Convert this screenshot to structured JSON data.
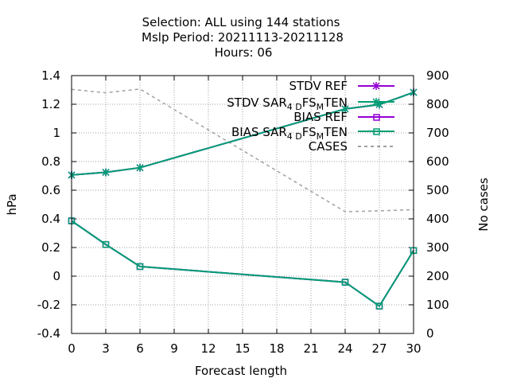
{
  "chart_data": {
    "type": "line",
    "title_lines": [
      "Selection: ALL using   144 stations",
      "Mslp   Period: 20211113-20211128",
      "Hours:  06"
    ],
    "xlabel": "Forecast length",
    "ylabel": "hPa",
    "y2label": "No cases",
    "xlim": [
      0,
      30
    ],
    "ylim": [
      -0.4,
      1.4
    ],
    "y2lim": [
      0,
      900
    ],
    "xticks": [
      0,
      3,
      6,
      9,
      12,
      15,
      18,
      21,
      24,
      27,
      30
    ],
    "yticks": [
      -0.4,
      -0.2,
      0,
      0.2,
      0.4,
      0.6,
      0.8,
      1,
      1.2,
      1.4
    ],
    "y2ticks": [
      0,
      100,
      200,
      300,
      400,
      500,
      600,
      700,
      800,
      900
    ],
    "grid": true,
    "legend_position": "top-right",
    "x": [
      0,
      3,
      6,
      24,
      27,
      30
    ],
    "series": [
      {
        "name": "STDV REF",
        "legend_text": "STDV REF",
        "axis": "y1",
        "color": "#9400d3",
        "marker": "star",
        "values": [
          0.706,
          0.725,
          0.757,
          1.167,
          1.198,
          1.283
        ]
      },
      {
        "name": "STDV SAR4DFSMTEN",
        "legend_text": "STDV SAR",
        "legend_sub1": "4 D",
        "legend_mid": "FS",
        "legend_sub2": "M",
        "legend_end": "TEN",
        "axis": "y1",
        "color": "#009e73",
        "marker": "star",
        "values": [
          0.706,
          0.725,
          0.757,
          1.167,
          1.198,
          1.283
        ]
      },
      {
        "name": "BIAS REF",
        "legend_text": "BIAS REF",
        "axis": "y1",
        "color": "#9400d3",
        "marker": "square",
        "values": [
          0.386,
          0.221,
          0.067,
          -0.042,
          -0.209,
          0.179
        ]
      },
      {
        "name": "BIAS SAR4DFSMTEN",
        "legend_text": "BIAS SAR",
        "legend_sub1": "4 D",
        "legend_mid": "FS",
        "legend_sub2": "M",
        "legend_end": "TEN",
        "axis": "y1",
        "color": "#009e73",
        "marker": "square",
        "values": [
          0.386,
          0.221,
          0.067,
          -0.042,
          -0.209,
          0.179
        ]
      },
      {
        "name": "CASES",
        "legend_text": "CASES",
        "axis": "y2",
        "color": "#a0a0a0",
        "marker": "none",
        "dashed": true,
        "values": [
          852,
          840,
          853,
          425,
          428,
          432
        ]
      }
    ]
  }
}
